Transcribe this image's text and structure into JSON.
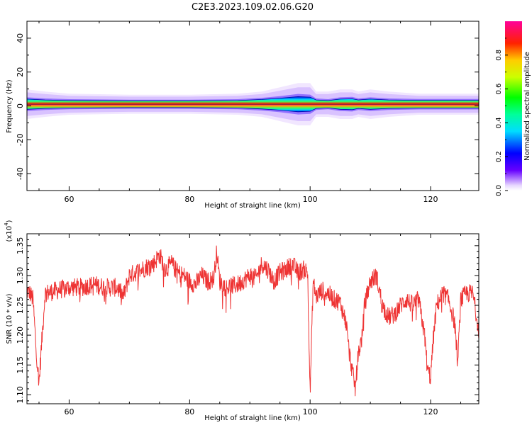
{
  "title": "C2E3.2023.109.02.06.G20",
  "chart_data": [
    {
      "type": "heatmap",
      "xlabel": "Height of straight line (km)",
      "ylabel": "Frequency (Hz)",
      "xlim": [
        53,
        128
      ],
      "ylim": [
        -50,
        50
      ],
      "xticks": [
        60,
        80,
        100,
        120
      ],
      "yticks": [
        -40,
        -20,
        0,
        20,
        40
      ],
      "colorbar": {
        "label": "Normalized spectral amplitude",
        "range": [
          0,
          1
        ],
        "ticks": [
          "0.0",
          "0.2",
          "0.4",
          "0.6",
          "0.8"
        ]
      },
      "band": {
        "center_hz": 1,
        "x": [
          53,
          56,
          60,
          70,
          80,
          88,
          92,
          95,
          98,
          100,
          101,
          103,
          105,
          107,
          108,
          110,
          113,
          118,
          122,
          128
        ],
        "halfwidth_hz": [
          3,
          2.5,
          2.2,
          2,
          2,
          2.2,
          2.8,
          3.5,
          4.5,
          4.2,
          2.5,
          2.2,
          3,
          3.2,
          2.5,
          3,
          2.5,
          2.3,
          2.3,
          2.3
        ],
        "halo_hz": [
          7,
          6,
          5,
          4.5,
          4.5,
          5,
          6,
          8,
          10,
          10,
          6,
          6,
          7,
          7,
          6,
          7,
          6,
          5,
          5,
          5
        ]
      }
    },
    {
      "type": "line",
      "xlabel": "Height of straight line (km)",
      "ylabel": "SNR (10 * v/v)",
      "yscale_label": "(x10^4)",
      "xlim": [
        53,
        128
      ],
      "ylim": [
        1.085,
        1.37
      ],
      "xticks": [
        60,
        80,
        100,
        120
      ],
      "yticks": [
        "1.10",
        "1.15",
        "1.20",
        "1.25",
        "1.30",
        "1.35"
      ],
      "line_color": "#ee3333",
      "series": [
        {
          "x": [
            53,
            53.5,
            54,
            54.5,
            55,
            56,
            58,
            60,
            62,
            64,
            66,
            68,
            69,
            70,
            72,
            74,
            75,
            76,
            77,
            78,
            79,
            80,
            81,
            82,
            83,
            84,
            84.5,
            85,
            86,
            88,
            90,
            91,
            92,
            93,
            94,
            95,
            96,
            97,
            98,
            99,
            99.6,
            100,
            100.5,
            101,
            102,
            103,
            104,
            105,
            106,
            106.5,
            107,
            107.5,
            108,
            108.7,
            109,
            110,
            111,
            112,
            113,
            114,
            115,
            116,
            117,
            118,
            119,
            119.5,
            120,
            120.5,
            121,
            122,
            123,
            124,
            124.5,
            125,
            126,
            127,
            128
          ],
          "y": [
            1.275,
            1.27,
            1.26,
            1.18,
            1.12,
            1.27,
            1.275,
            1.28,
            1.28,
            1.285,
            1.28,
            1.28,
            1.265,
            1.3,
            1.31,
            1.32,
            1.335,
            1.31,
            1.32,
            1.305,
            1.3,
            1.29,
            1.285,
            1.3,
            1.29,
            1.295,
            1.34,
            1.29,
            1.28,
            1.285,
            1.3,
            1.295,
            1.32,
            1.31,
            1.29,
            1.305,
            1.31,
            1.32,
            1.305,
            1.31,
            1.305,
            1.1,
            1.29,
            1.265,
            1.275,
            1.27,
            1.26,
            1.255,
            1.22,
            1.17,
            1.14,
            1.11,
            1.17,
            1.2,
            1.25,
            1.29,
            1.3,
            1.25,
            1.23,
            1.235,
            1.25,
            1.26,
            1.25,
            1.26,
            1.2,
            1.14,
            1.13,
            1.2,
            1.25,
            1.27,
            1.26,
            1.22,
            1.15,
            1.26,
            1.27,
            1.27,
            1.21
          ]
        }
      ]
    }
  ]
}
